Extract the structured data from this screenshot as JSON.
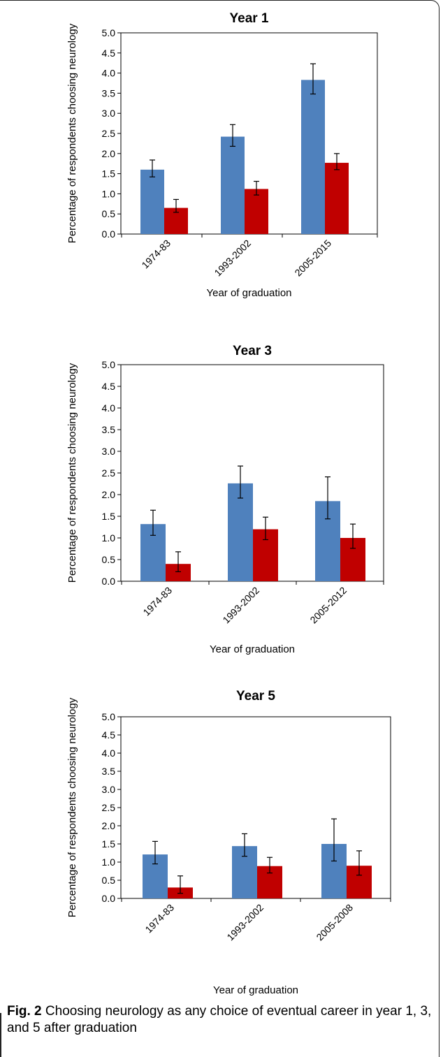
{
  "colors": {
    "series_a": "#4f81bd",
    "series_b": "#c00000",
    "axis": "#000000"
  },
  "caption": {
    "label": "Fig. 2",
    "text": " Choosing neurology as any choice of eventual career in year 1, 3, and 5 after graduation"
  },
  "chart_data": [
    {
      "type": "bar",
      "title": "Year 1",
      "xlabel": "Year of graduation",
      "ylabel": "Percentage of respondents choosing neurology",
      "ylim": [
        0,
        5
      ],
      "yticks": [
        "0.0",
        "0.5",
        "1.0",
        "1.5",
        "2.0",
        "2.5",
        "3.0",
        "3.5",
        "4.0",
        "4.5",
        "5.0"
      ],
      "categories": [
        "1974-83",
        "1993-2002",
        "2005-2015"
      ],
      "series": [
        {
          "values": [
            1.6,
            2.42,
            3.83
          ],
          "error_low": [
            1.42,
            2.18,
            3.48
          ],
          "error_high": [
            1.84,
            2.72,
            4.23
          ]
        },
        {
          "values": [
            0.65,
            1.12,
            1.77
          ],
          "error_low": [
            0.54,
            0.97,
            1.6
          ],
          "error_high": [
            0.86,
            1.31,
            2.0
          ]
        }
      ],
      "legend": false,
      "grid": false
    },
    {
      "type": "bar",
      "title": "Year 3",
      "xlabel": "Year of graduation",
      "ylabel": "Percentage of respondents choosing neurology",
      "ylim": [
        0,
        5
      ],
      "yticks": [
        "0.0",
        "0.5",
        "1.0",
        "1.5",
        "2.0",
        "2.5",
        "3.0",
        "3.5",
        "4.0",
        "4.5",
        "5.0"
      ],
      "categories": [
        "1974-83",
        "1993-2002",
        "2005-2012"
      ],
      "series": [
        {
          "values": [
            1.32,
            2.26,
            1.85
          ],
          "error_low": [
            1.06,
            1.92,
            1.44
          ],
          "error_high": [
            1.64,
            2.66,
            2.41
          ]
        },
        {
          "values": [
            0.4,
            1.2,
            1.0
          ],
          "error_low": [
            0.22,
            0.96,
            0.76
          ],
          "error_high": [
            0.68,
            1.48,
            1.32
          ]
        }
      ],
      "legend": false,
      "grid": false
    },
    {
      "type": "bar",
      "title": "Year 5",
      "xlabel": "Year of graduation",
      "ylabel": "Percentage of respondents choosing neurology",
      "ylim": [
        0,
        5
      ],
      "yticks": [
        "0.0",
        "0.5",
        "1.0",
        "1.5",
        "2.0",
        "2.5",
        "3.0",
        "3.5",
        "4.0",
        "4.5",
        "5.0"
      ],
      "categories": [
        "1974-83",
        "1993-2002",
        "2005-2008"
      ],
      "series": [
        {
          "values": [
            1.21,
            1.44,
            1.5
          ],
          "error_low": [
            0.95,
            1.16,
            1.03
          ],
          "error_high": [
            1.57,
            1.78,
            2.19
          ]
        },
        {
          "values": [
            0.3,
            0.89,
            0.9
          ],
          "error_low": [
            0.14,
            0.7,
            0.64
          ],
          "error_high": [
            0.62,
            1.13,
            1.31
          ]
        }
      ],
      "legend": false,
      "grid": false
    }
  ]
}
